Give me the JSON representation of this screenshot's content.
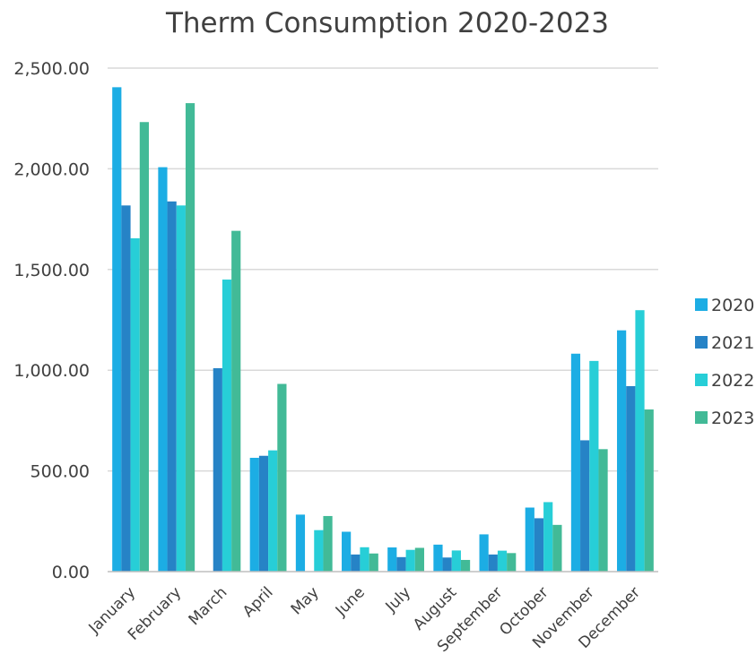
{
  "chart_data": {
    "type": "bar",
    "title": "Therm Consumption 2020-2023",
    "xlabel": "",
    "ylabel": "",
    "ylim": [
      0,
      2500
    ],
    "yticks": [
      0,
      500,
      1000,
      1500,
      2000,
      2500
    ],
    "ytick_labels": [
      "0.00",
      "500.00",
      "1,000.00",
      "1,500.00",
      "2,000.00",
      "2,500.00"
    ],
    "grid": true,
    "legend_position": "right",
    "categories": [
      "January",
      "February",
      "March",
      "April",
      "May",
      "June",
      "July",
      "August",
      "September",
      "October",
      "November",
      "December"
    ],
    "series": [
      {
        "name": "2020",
        "color": "#1cade4",
        "values": [
          2405,
          2008,
          0,
          565,
          283,
          198,
          120,
          134,
          185,
          318,
          1082,
          1198
        ]
      },
      {
        "name": "2021",
        "color": "#2683c6",
        "values": [
          1818,
          1838,
          1010,
          575,
          0,
          85,
          72,
          70,
          85,
          265,
          652,
          921
        ]
      },
      {
        "name": "2022",
        "color": "#27ced7",
        "values": [
          1655,
          1818,
          1450,
          602,
          206,
          121,
          108,
          105,
          104,
          345,
          1046,
          1298
        ]
      },
      {
        "name": "2023",
        "color": "#42ba97",
        "values": [
          2232,
          2326,
          1692,
          932,
          276,
          90,
          118,
          58,
          92,
          232,
          608,
          805
        ]
      }
    ]
  }
}
